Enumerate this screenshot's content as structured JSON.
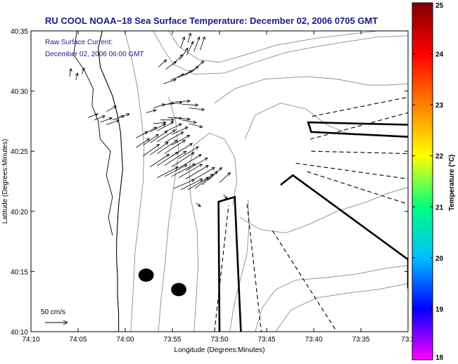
{
  "chart_data": {
    "type": "scatter",
    "title": "RU COOL  NOAA−18  Sea Surface Temperature:  December 02, 2006 0705 GMT",
    "subtitle_lines": [
      "Raw Surface Current:",
      "December 02, 2006 06:00 GMT"
    ],
    "xlabel": "Longitude (Degrees:Minutes)",
    "ylabel": "Latitude (Degrees:Minutes)",
    "x_ticks": [
      "74:10",
      "74:05",
      "74:00",
      "73:55",
      "73:50",
      "73:45",
      "73:40",
      "73:35",
      "73:3"
    ],
    "y_ticks": [
      "40:10",
      "40:15",
      "40:20",
      "40:25",
      "40:30",
      "40:35"
    ],
    "xlim_minutes_west": [
      610,
      573
    ],
    "ylim_minutes_north": [
      2410,
      2435
    ],
    "colorbar": {
      "label": "Temperature (°C)",
      "ticks": [
        "18",
        "19",
        "20",
        "21",
        "22",
        "23",
        "24",
        "25"
      ],
      "range": [
        18,
        25
      ],
      "colors": [
        "#ff00ff",
        "#0000ff",
        "#00c0ff",
        "#00ff80",
        "#ffff00",
        "#ff8000",
        "#ff0000",
        "#800000"
      ]
    },
    "scale_label": "50 cm/s",
    "current_vectors": [
      {
        "lon": 606.2,
        "lat": 2431.2,
        "u": 3,
        "v": 18
      },
      {
        "lon": 605.6,
        "lat": 2430.9,
        "u": 4,
        "v": 16
      },
      {
        "lon": 605.0,
        "lat": 2431.4,
        "u": 5,
        "v": 14
      },
      {
        "lon": 604.4,
        "lat": 2427.8,
        "u": 22,
        "v": 8
      },
      {
        "lon": 603.8,
        "lat": 2427.6,
        "u": 24,
        "v": 9
      },
      {
        "lon": 603.2,
        "lat": 2427.4,
        "u": 26,
        "v": 10
      },
      {
        "lon": 602.6,
        "lat": 2428.3,
        "u": 22,
        "v": 12
      },
      {
        "lon": 602.6,
        "lat": 2427.2,
        "u": 28,
        "v": 10
      },
      {
        "lon": 602.0,
        "lat": 2427.6,
        "u": 26,
        "v": 9
      },
      {
        "lon": 601.4,
        "lat": 2427.8,
        "u": 24,
        "v": 8
      },
      {
        "lon": 598.7,
        "lat": 2428.2,
        "u": 22,
        "v": 6
      },
      {
        "lon": 598.0,
        "lat": 2428.6,
        "u": 26,
        "v": 8
      },
      {
        "lon": 597.3,
        "lat": 2428.8,
        "u": 30,
        "v": 6
      },
      {
        "lon": 596.6,
        "lat": 2428.9,
        "u": 32,
        "v": 4
      },
      {
        "lon": 595.9,
        "lat": 2429.1,
        "u": 34,
        "v": 2
      },
      {
        "lon": 595.2,
        "lat": 2428.9,
        "u": 36,
        "v": -2
      },
      {
        "lon": 594.5,
        "lat": 2428.6,
        "u": 34,
        "v": -4
      },
      {
        "lon": 598.0,
        "lat": 2427.3,
        "u": 28,
        "v": 2
      },
      {
        "lon": 597.3,
        "lat": 2427.6,
        "u": 30,
        "v": 0
      },
      {
        "lon": 596.6,
        "lat": 2427.8,
        "u": 32,
        "v": -2
      },
      {
        "lon": 595.9,
        "lat": 2427.8,
        "u": 34,
        "v": -4
      },
      {
        "lon": 595.2,
        "lat": 2427.6,
        "u": 32,
        "v": -6
      },
      {
        "lon": 594.5,
        "lat": 2427.3,
        "u": 30,
        "v": -8
      },
      {
        "lon": 597.0,
        "lat": 2430.6,
        "u": 28,
        "v": 10
      },
      {
        "lon": 596.3,
        "lat": 2430.9,
        "u": 30,
        "v": 14
      },
      {
        "lon": 595.6,
        "lat": 2431.1,
        "u": 32,
        "v": 16
      },
      {
        "lon": 594.9,
        "lat": 2431.3,
        "u": 30,
        "v": 20
      },
      {
        "lon": 594.2,
        "lat": 2431.6,
        "u": 26,
        "v": 24
      },
      {
        "lon": 596.8,
        "lat": 2431.8,
        "u": 24,
        "v": 18
      },
      {
        "lon": 596.1,
        "lat": 2432.2,
        "u": 22,
        "v": 22
      },
      {
        "lon": 595.4,
        "lat": 2432.6,
        "u": 18,
        "v": 26
      },
      {
        "lon": 594.7,
        "lat": 2433.0,
        "u": 14,
        "v": 30
      },
      {
        "lon": 594.0,
        "lat": 2433.3,
        "u": 12,
        "v": 32
      },
      {
        "lon": 593.4,
        "lat": 2433.4,
        "u": 10,
        "v": 30
      },
      {
        "lon": 595.3,
        "lat": 2433.6,
        "u": 8,
        "v": 24
      },
      {
        "lon": 594.6,
        "lat": 2434.0,
        "u": 6,
        "v": 22
      },
      {
        "lon": 597.5,
        "lat": 2432.0,
        "u": 18,
        "v": 16
      },
      {
        "lon": 599.7,
        "lat": 2426.1,
        "u": 26,
        "v": 14
      },
      {
        "lon": 599.0,
        "lat": 2426.4,
        "u": 30,
        "v": 16
      },
      {
        "lon": 598.3,
        "lat": 2426.6,
        "u": 34,
        "v": 18
      },
      {
        "lon": 597.6,
        "lat": 2426.7,
        "u": 36,
        "v": 20
      },
      {
        "lon": 596.9,
        "lat": 2426.6,
        "u": 38,
        "v": 18
      },
      {
        "lon": 596.2,
        "lat": 2426.4,
        "u": 36,
        "v": 16
      },
      {
        "lon": 599.7,
        "lat": 2425.3,
        "u": 30,
        "v": 20
      },
      {
        "lon": 599.0,
        "lat": 2425.5,
        "u": 34,
        "v": 24
      },
      {
        "lon": 598.3,
        "lat": 2425.7,
        "u": 38,
        "v": 26
      },
      {
        "lon": 597.6,
        "lat": 2425.8,
        "u": 40,
        "v": 26
      },
      {
        "lon": 596.9,
        "lat": 2425.7,
        "u": 42,
        "v": 24
      },
      {
        "lon": 596.2,
        "lat": 2425.5,
        "u": 40,
        "v": 22
      },
      {
        "lon": 599.0,
        "lat": 2424.6,
        "u": 36,
        "v": 26
      },
      {
        "lon": 598.3,
        "lat": 2424.7,
        "u": 40,
        "v": 28
      },
      {
        "lon": 597.6,
        "lat": 2424.8,
        "u": 44,
        "v": 30
      },
      {
        "lon": 596.9,
        "lat": 2424.8,
        "u": 46,
        "v": 30
      },
      {
        "lon": 596.2,
        "lat": 2424.6,
        "u": 46,
        "v": 28
      },
      {
        "lon": 595.5,
        "lat": 2424.4,
        "u": 44,
        "v": 26
      },
      {
        "lon": 598.3,
        "lat": 2423.7,
        "u": 42,
        "v": 28
      },
      {
        "lon": 597.6,
        "lat": 2423.8,
        "u": 46,
        "v": 30
      },
      {
        "lon": 596.9,
        "lat": 2423.8,
        "u": 48,
        "v": 32
      },
      {
        "lon": 596.2,
        "lat": 2423.7,
        "u": 50,
        "v": 32
      },
      {
        "lon": 595.5,
        "lat": 2423.6,
        "u": 50,
        "v": 30
      },
      {
        "lon": 594.8,
        "lat": 2423.4,
        "u": 48,
        "v": 28
      },
      {
        "lon": 597.6,
        "lat": 2422.8,
        "u": 46,
        "v": 24
      },
      {
        "lon": 596.9,
        "lat": 2422.9,
        "u": 50,
        "v": 26
      },
      {
        "lon": 596.2,
        "lat": 2422.9,
        "u": 52,
        "v": 28
      },
      {
        "lon": 595.5,
        "lat": 2422.8,
        "u": 52,
        "v": 30
      },
      {
        "lon": 594.8,
        "lat": 2422.7,
        "u": 50,
        "v": 30
      },
      {
        "lon": 594.1,
        "lat": 2422.6,
        "u": 48,
        "v": 28
      },
      {
        "lon": 596.0,
        "lat": 2421.9,
        "u": 46,
        "v": 20
      },
      {
        "lon": 595.3,
        "lat": 2421.8,
        "u": 48,
        "v": 24
      },
      {
        "lon": 594.6,
        "lat": 2421.8,
        "u": 46,
        "v": 28
      },
      {
        "lon": 593.9,
        "lat": 2421.9,
        "u": 40,
        "v": 32
      },
      {
        "lon": 593.2,
        "lat": 2422.2,
        "u": 34,
        "v": 30
      },
      {
        "lon": 592.6,
        "lat": 2422.6,
        "u": 30,
        "v": 28
      },
      {
        "lon": 591.5,
        "lat": 2422.4,
        "u": 24,
        "v": 22
      },
      {
        "lon": 591.1,
        "lat": 2421.4,
        "u": 8,
        "v": -10
      },
      {
        "lon": 593.8,
        "lat": 2420.7,
        "u": 10,
        "v": -8
      }
    ],
    "coastline": [
      [
        603.0,
        2435
      ],
      [
        603.4,
        2433.6
      ],
      [
        603.2,
        2432.0
      ],
      [
        602.6,
        2430.8
      ],
      [
        602.0,
        2429.6
      ],
      [
        601.5,
        2428.0
      ],
      [
        601.2,
        2426.5
      ],
      [
        601.1,
        2425.0
      ],
      [
        601.0,
        2423.5
      ],
      [
        601.2,
        2422.0
      ],
      [
        601.4,
        2420.5
      ],
      [
        601.5,
        2419.0
      ],
      [
        601.6,
        2417.5
      ],
      [
        601.6,
        2416.0
      ],
      [
        601.5,
        2414.5
      ],
      [
        601.5,
        2413.0
      ],
      [
        601.4,
        2411.5
      ],
      [
        601.4,
        2410
      ]
    ],
    "inlet_shore": [
      [
        605.5,
        2435
      ],
      [
        605.8,
        2433.0
      ],
      [
        604.8,
        2431.8
      ],
      [
        603.9,
        2430.2
      ],
      [
        604.0,
        2428.8
      ],
      [
        603.4,
        2427.5
      ],
      [
        603.2,
        2426.0
      ],
      [
        602.2,
        2425.0
      ],
      [
        602.6,
        2423.0
      ],
      [
        602.0,
        2421.2
      ],
      [
        602.4,
        2419.5
      ],
      [
        602.0,
        2418.0
      ]
    ],
    "isobaths": [
      [
        [
          598.0,
          2435
        ],
        [
          597.0,
          2433.5
        ],
        [
          596.0,
          2432.2
        ],
        [
          594.0,
          2431.4
        ],
        [
          591.0,
          2431.5
        ],
        [
          588.0,
          2432.4
        ],
        [
          585.0,
          2433.2
        ],
        [
          582.0,
          2433.7
        ],
        [
          579.0,
          2434.1
        ],
        [
          576.0,
          2434.5
        ],
        [
          573.0,
          2434.6
        ]
      ],
      [
        [
          596.5,
          2435
        ],
        [
          595.5,
          2433.7
        ],
        [
          593.5,
          2432.6
        ],
        [
          591.5,
          2432.4
        ],
        [
          589.0,
          2433.0
        ],
        [
          586.0,
          2433.8
        ],
        [
          582.0,
          2434.4
        ],
        [
          578.0,
          2434.8
        ],
        [
          576.0,
          2435
        ]
      ],
      [
        [
          600.2,
          2410
        ],
        [
          600.0,
          2413.0
        ],
        [
          599.8,
          2416.5
        ],
        [
          599.4,
          2419.5
        ],
        [
          599.0,
          2422.5
        ],
        [
          598.9,
          2425.5
        ],
        [
          599.2,
          2428.0
        ],
        [
          599.6,
          2430.5
        ],
        [
          600.2,
          2433.0
        ],
        [
          600.8,
          2435
        ]
      ],
      [
        [
          597.5,
          2410
        ],
        [
          597.2,
          2413.0
        ],
        [
          596.8,
          2416.0
        ],
        [
          596.5,
          2419.0
        ],
        [
          596.0,
          2422.0
        ],
        [
          595.5,
          2425.0
        ],
        [
          595.8,
          2427.5
        ],
        [
          596.5,
          2429.5
        ]
      ],
      [
        [
          594.0,
          2410
        ],
        [
          593.8,
          2412.5
        ],
        [
          593.6,
          2415.5
        ],
        [
          593.7,
          2418.5
        ],
        [
          594.3,
          2421.0
        ],
        [
          594.5,
          2423.5
        ],
        [
          594.0,
          2425.5
        ],
        [
          592.5,
          2426.5
        ],
        [
          591.0,
          2426.0
        ],
        [
          590.0,
          2424.5
        ],
        [
          589.8,
          2422.5
        ],
        [
          590.2,
          2420.5
        ]
      ],
      [
        [
          590.5,
          2410
        ],
        [
          590.0,
          2412.5
        ],
        [
          589.4,
          2414.5
        ],
        [
          588.8,
          2416.5
        ],
        [
          588.6,
          2418.8
        ],
        [
          588.7,
          2421.0
        ]
      ],
      [
        [
          588.0,
          2410
        ],
        [
          587.3,
          2412.0
        ],
        [
          586.0,
          2413.5
        ],
        [
          584.0,
          2414.3
        ],
        [
          581.0,
          2414.5
        ],
        [
          578.0,
          2414.8
        ],
        [
          575.0,
          2415.3
        ],
        [
          573.0,
          2415.5
        ]
      ],
      [
        [
          589.5,
          2419.5
        ],
        [
          587.5,
          2418.5
        ],
        [
          585.0,
          2418.2
        ],
        [
          582.5,
          2419.0
        ],
        [
          580.0,
          2420.0
        ],
        [
          577.0,
          2420.8
        ],
        [
          575.0,
          2421.5
        ],
        [
          573.0,
          2422.0
        ]
      ],
      [
        [
          589.0,
          2426.0
        ],
        [
          588.0,
          2428.0
        ],
        [
          585.5,
          2429.0
        ],
        [
          583.0,
          2428.5
        ],
        [
          581.0,
          2427.2
        ],
        [
          579.0,
          2426.5
        ]
      ],
      [
        [
          592.0,
          2429.0
        ],
        [
          590.0,
          2430.2
        ],
        [
          587.0,
          2431.0
        ],
        [
          583.0,
          2431.2
        ],
        [
          580.0,
          2431.0
        ],
        [
          577.0,
          2430.5
        ],
        [
          575.0,
          2430.5
        ],
        [
          573.0,
          2430.6
        ]
      ],
      [
        [
          586.0,
          2410
        ],
        [
          584.5,
          2411.8
        ],
        [
          582.0,
          2412.8
        ],
        [
          579.0,
          2413.2
        ],
        [
          576.0,
          2413.5
        ],
        [
          573.0,
          2414.0
        ]
      ]
    ],
    "thick_outlines": [
      [
        [
          591.5,
          2410
        ],
        [
          591.6,
          2420.8
        ],
        [
          590.0,
          2421.2
        ],
        [
          589.4,
          2410
        ]
      ],
      [
        [
          573.0,
          2427.2
        ],
        [
          582.8,
          2427.4
        ],
        [
          582.5,
          2426.6
        ],
        [
          573.0,
          2426.2
        ]
      ],
      [
        [
          585.5,
          2422.2
        ],
        [
          584.3,
          2423.0
        ],
        [
          573.0,
          2416.0
        ],
        [
          573.0,
          2413.6
        ]
      ]
    ],
    "dashed_lines": [
      [
        [
          592.0,
          2410
        ],
        [
          590.6,
          2420.5
        ]
      ],
      [
        [
          588.8,
          2420.6
        ],
        [
          587.4,
          2410
        ]
      ],
      [
        [
          586.3,
          2418.4
        ],
        [
          580.0,
          2410
        ]
      ],
      [
        [
          582.6,
          2426.0
        ],
        [
          573.0,
          2428.2
        ]
      ],
      [
        [
          582.9,
          2423.3
        ],
        [
          573.0,
          2420.6
        ]
      ],
      [
        [
          584.0,
          2424.0
        ],
        [
          573.0,
          2422.7
        ]
      ],
      [
        [
          582.5,
          2425.0
        ],
        [
          573.0,
          2424.8
        ]
      ],
      [
        [
          582.4,
          2427.9
        ],
        [
          573.0,
          2429.5
        ]
      ]
    ],
    "islands": [
      {
        "lon": 598.7,
        "lat": 2414.7,
        "rlon": 0.75,
        "rlat": 0.55
      },
      {
        "lon": 595.5,
        "lat": 2413.5,
        "rlon": 0.75,
        "rlat": 0.55
      }
    ]
  }
}
